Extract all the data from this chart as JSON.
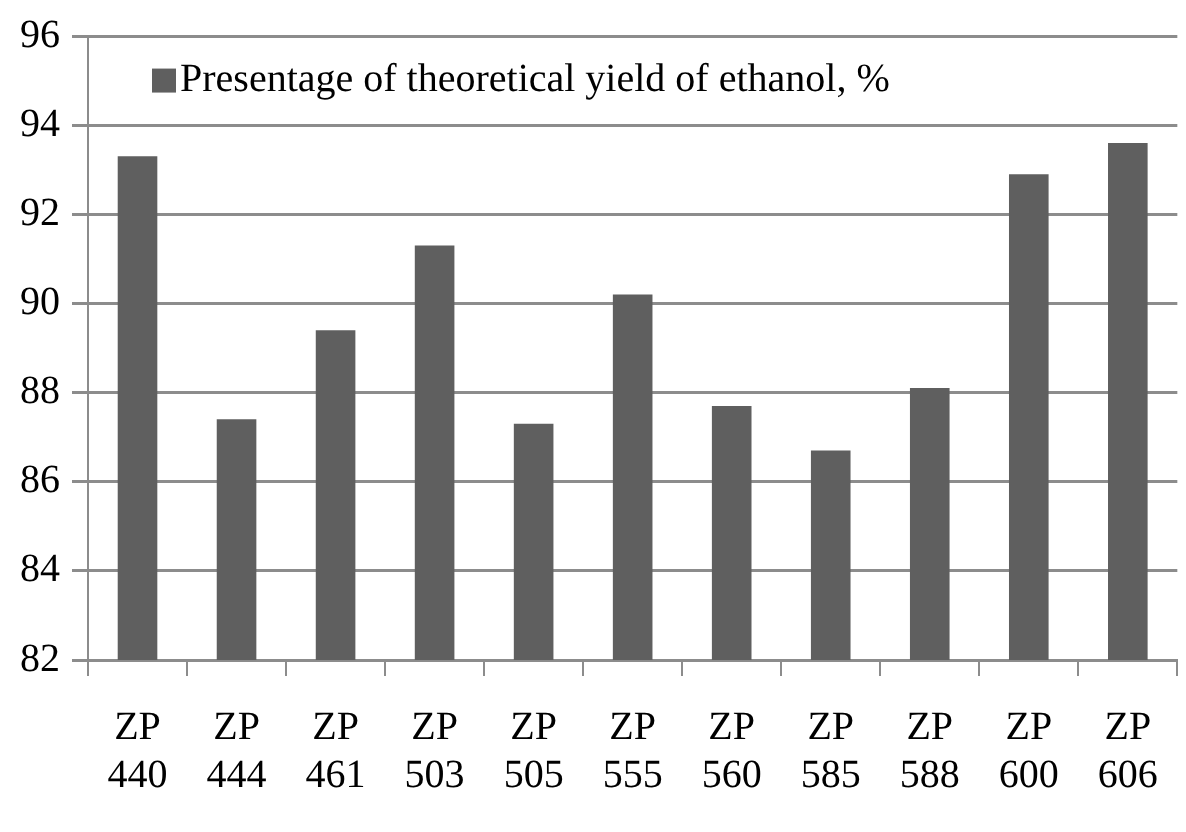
{
  "chart_data": {
    "type": "bar",
    "categories": [
      "ZP 440",
      "ZP 444",
      "ZP 461",
      "ZP 503",
      "ZP 505",
      "ZP 555",
      "ZP 560",
      "ZP 585",
      "ZP 588",
      "ZP 600",
      "ZP 606"
    ],
    "series": [
      {
        "name": "Presentage of theoretical yield of ethanol, %",
        "color": "#5f5f5f",
        "values": [
          93.3,
          87.4,
          89.4,
          91.3,
          87.3,
          90.2,
          87.7,
          86.7,
          88.1,
          92.9,
          93.6
        ]
      }
    ],
    "ylim": [
      82,
      96
    ],
    "yticks": [
      82,
      84,
      86,
      88,
      90,
      92,
      94,
      96
    ],
    "grid": "y",
    "legend": "top left"
  }
}
